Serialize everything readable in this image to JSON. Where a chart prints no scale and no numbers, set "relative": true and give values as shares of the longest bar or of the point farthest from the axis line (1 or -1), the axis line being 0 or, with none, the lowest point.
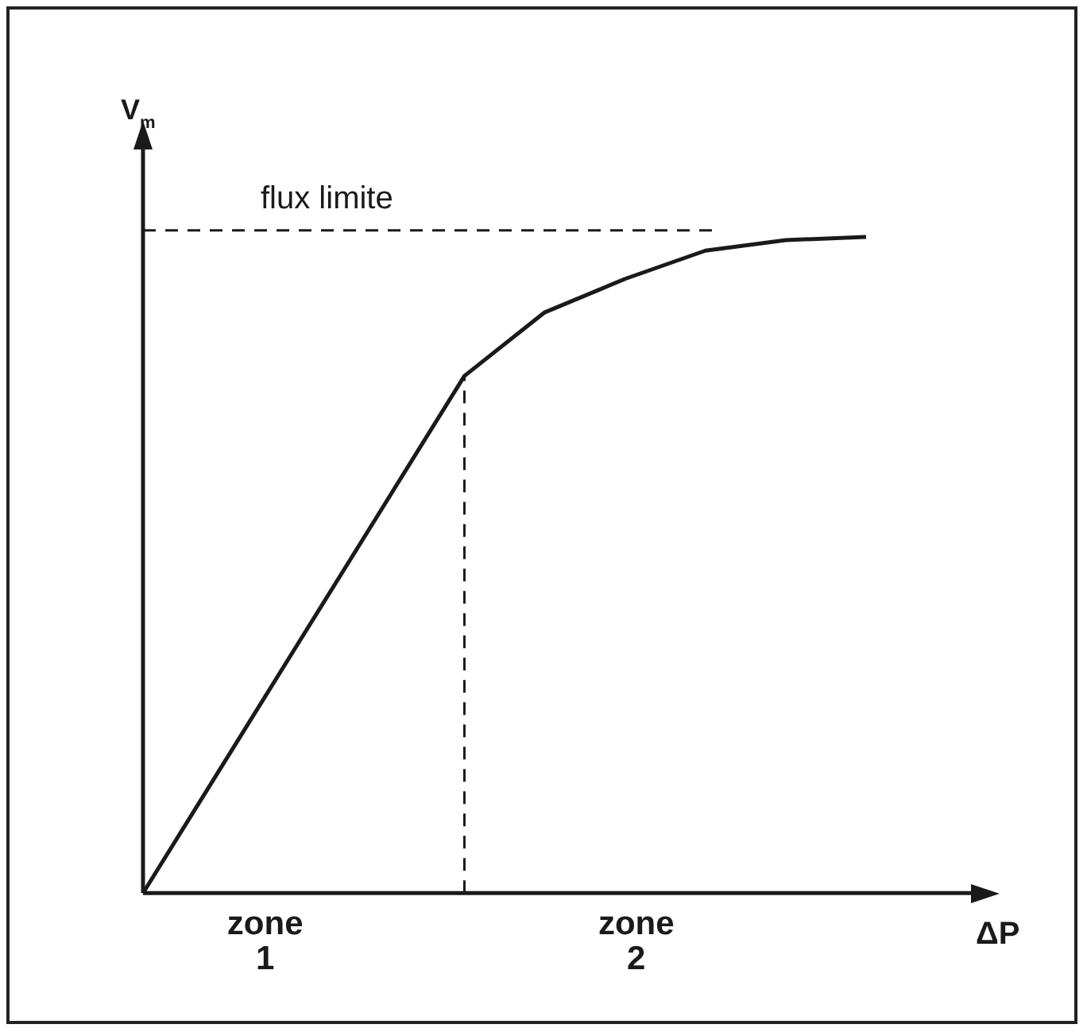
{
  "chart_data": {
    "type": "line",
    "relative": true,
    "xlabel": "ΔP",
    "ylabel": "V$_{m}$",
    "categories": [
      null,
      null,
      null,
      null,
      null,
      null,
      null,
      null,
      null,
      null
    ],
    "grid": false,
    "legend": false,
    "marker": "none",
    "line_style": "solid",
    "series": [
      {
        "color": "#1a1a1a",
        "values": [
          0,
          0.197,
          0.394,
          0.591,
          0.788,
          0.885,
          0.936,
          0.979,
          0.995,
          1
        ]
      }
    ],
    "ref_lines": [
      {
        "axis": "y",
        "value": 1.01,
        "label": "flux limite",
        "line_style": "dashed",
        "color": "#1a1a1a"
      }
    ],
    "annotations": [
      "zone\n1",
      "zone\n2"
    ]
  }
}
